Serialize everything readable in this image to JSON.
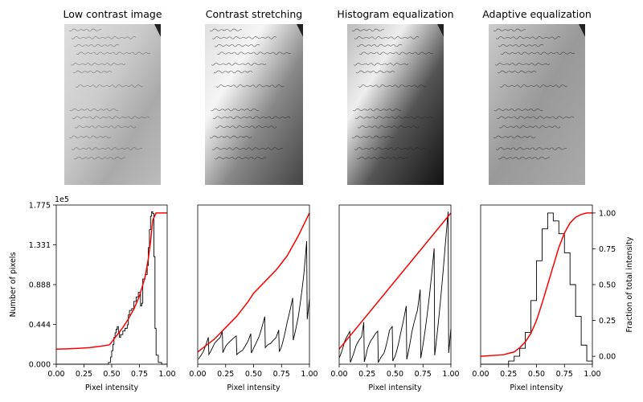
{
  "figure": {
    "panel_titles": [
      "Low contrast image",
      "Contrast stretching",
      "Histogram equalization",
      "Adaptive equalization"
    ],
    "image_text": [
      "Le gard Du chebal",
      "Je connais la verite",
      "Je me souviens de la lettre",
      "M. de Valcourt ecrit",
      "il allait venir"
    ]
  },
  "chart_data": [
    {
      "type": "bar",
      "subtype": "histogram-step",
      "panel": "Low contrast image",
      "x": [
        0.0,
        0.45,
        0.47,
        0.49,
        0.5,
        0.51,
        0.52,
        0.53,
        0.54,
        0.55,
        0.56,
        0.57,
        0.58,
        0.6,
        0.62,
        0.64,
        0.65,
        0.66,
        0.68,
        0.7,
        0.72,
        0.74,
        0.76,
        0.77,
        0.78,
        0.8,
        0.82,
        0.83,
        0.84,
        0.85,
        0.86,
        0.87,
        0.88,
        0.89,
        0.9,
        0.92,
        0.95,
        1.0
      ],
      "values": [
        0,
        0,
        2000,
        8000,
        15000,
        22000,
        30000,
        35000,
        39000,
        42000,
        36000,
        30000,
        33000,
        37000,
        40000,
        44000,
        55000,
        60000,
        62000,
        70000,
        75000,
        80000,
        65000,
        68000,
        95000,
        100000,
        110000,
        130000,
        150000,
        165000,
        170000,
        168000,
        120000,
        40000,
        10000,
        2000,
        0,
        0
      ],
      "cdf_x": [
        0.0,
        0.1,
        0.2,
        0.3,
        0.4,
        0.48,
        0.5,
        0.55,
        0.6,
        0.65,
        0.7,
        0.75,
        0.8,
        0.83,
        0.85,
        0.87,
        0.9,
        0.95,
        1.0
      ],
      "cdf_y": [
        0.05,
        0.052,
        0.055,
        0.06,
        0.07,
        0.08,
        0.1,
        0.15,
        0.2,
        0.26,
        0.33,
        0.42,
        0.55,
        0.68,
        0.8,
        0.95,
        1.0,
        1.0,
        1.0
      ],
      "xlim": [
        0,
        1
      ],
      "ylim": [
        0,
        177500
      ],
      "xticks": [
        "0.00",
        "0.25",
        "0.50",
        "0.75",
        "1.00"
      ],
      "yticks": [
        "0.000",
        "0.444",
        "0.888",
        "1.331",
        "1.775"
      ],
      "y_scale_note": "1e5",
      "xlabel": "Pixel intensity",
      "ylabel": "Number of pixels"
    },
    {
      "type": "bar",
      "subtype": "histogram-step",
      "panel": "Contrast stretching",
      "x": [
        0.0,
        0.05,
        0.1,
        0.15,
        0.2,
        0.25,
        0.3,
        0.35,
        0.4,
        0.45,
        0.5,
        0.55,
        0.6,
        0.65,
        0.7,
        0.75,
        0.8,
        0.85,
        0.9,
        0.95,
        1.0
      ],
      "values": [
        0.05,
        0.09,
        0.15,
        0.18,
        0.16,
        0.2,
        0.17,
        0.15,
        0.12,
        0.14,
        0.18,
        0.2,
        0.25,
        0.18,
        0.16,
        0.2,
        0.3,
        0.35,
        0.42,
        0.55,
        0.75
      ],
      "cdf_x": [
        0.0,
        0.05,
        0.1,
        0.15,
        0.2,
        0.25,
        0.3,
        0.35,
        0.4,
        0.45,
        0.5,
        0.55,
        0.6,
        0.65,
        0.7,
        0.75,
        0.8,
        0.85,
        0.9,
        0.95,
        1.0
      ],
      "cdf_y": [
        0.03,
        0.06,
        0.09,
        0.12,
        0.16,
        0.2,
        0.24,
        0.28,
        0.33,
        0.38,
        0.44,
        0.48,
        0.52,
        0.56,
        0.6,
        0.65,
        0.7,
        0.77,
        0.84,
        0.92,
        1.0
      ],
      "xlim": [
        0,
        1
      ],
      "xticks": [
        "0.00",
        "0.25",
        "0.50",
        "0.75",
        "1.00"
      ],
      "xlabel": "Pixel intensity"
    },
    {
      "type": "bar",
      "subtype": "histogram-step",
      "panel": "Histogram equalization",
      "x": [
        0.0,
        0.05,
        0.1,
        0.15,
        0.2,
        0.25,
        0.3,
        0.35,
        0.4,
        0.45,
        0.5,
        0.55,
        0.6,
        0.65,
        0.7,
        0.75,
        0.8,
        0.85,
        0.9,
        0.95,
        1.0
      ],
      "values": [
        0.15,
        0.22,
        0.2,
        0.25,
        0.2,
        0.35,
        0.25,
        0.2,
        0.15,
        0.25,
        0.2,
        0.3,
        0.35,
        0.45,
        0.4,
        0.5,
        0.6,
        0.7,
        0.8,
        0.9,
        0.95
      ],
      "cdf_x": [
        0.0,
        1.0
      ],
      "cdf_y": [
        0.05,
        1.0
      ],
      "xlim": [
        0,
        1
      ],
      "xticks": [
        "0.00",
        "0.25",
        "0.50",
        "0.75",
        "1.00"
      ],
      "xlabel": "Pixel intensity"
    },
    {
      "type": "bar",
      "subtype": "histogram-step",
      "panel": "Adaptive equalization",
      "x": [
        0.0,
        0.2,
        0.25,
        0.3,
        0.35,
        0.4,
        0.45,
        0.5,
        0.55,
        0.6,
        0.65,
        0.7,
        0.75,
        0.8,
        0.85,
        0.9,
        0.95,
        1.0
      ],
      "values": [
        0.0,
        0.0,
        0.02,
        0.05,
        0.1,
        0.2,
        0.4,
        0.65,
        0.85,
        0.95,
        0.9,
        0.82,
        0.7,
        0.5,
        0.3,
        0.12,
        0.02,
        0.0
      ],
      "cdf_x": [
        0.0,
        0.2,
        0.3,
        0.35,
        0.4,
        0.45,
        0.5,
        0.55,
        0.6,
        0.65,
        0.7,
        0.75,
        0.8,
        0.85,
        0.9,
        0.95,
        1.0
      ],
      "cdf_y": [
        0.0,
        0.01,
        0.03,
        0.06,
        0.1,
        0.16,
        0.25,
        0.37,
        0.5,
        0.63,
        0.76,
        0.86,
        0.93,
        0.97,
        0.99,
        1.0,
        1.0
      ],
      "xlim": [
        0,
        1
      ],
      "xticks": [
        "0.00",
        "0.25",
        "0.50",
        "0.75",
        "1.00"
      ],
      "y2ticks": [
        "0.00",
        "0.25",
        "0.50",
        "0.75",
        "1.00"
      ],
      "xlabel": "Pixel intensity",
      "y2label": "Fraction of total intensity"
    }
  ],
  "colors": {
    "cdf": "#ff0000",
    "hist": "#000000"
  }
}
